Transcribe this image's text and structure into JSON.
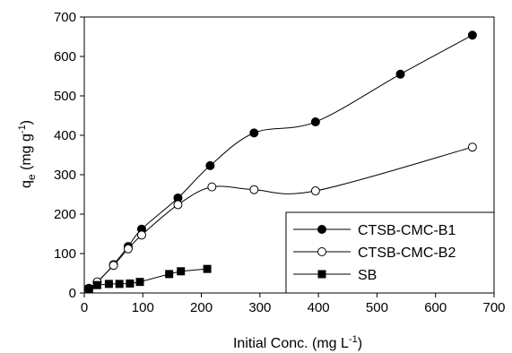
{
  "chart_data": {
    "type": "scatter",
    "title": "",
    "xlabel": {
      "main": "Initial Conc. (mg L",
      "sup": "-1",
      "end": ")"
    },
    "ylabel": {
      "main": "q",
      "sub": "e",
      "mid": " (mg g",
      "sup": "-1",
      "end": ")"
    },
    "xlim": [
      0,
      700
    ],
    "ylim": [
      0,
      700
    ],
    "xticks": [
      0,
      100,
      200,
      300,
      400,
      500,
      600,
      700
    ],
    "yticks": [
      0,
      100,
      200,
      300,
      400,
      500,
      600,
      700
    ],
    "grid": false,
    "legend_position": "bottom-right",
    "series": [
      {
        "name": "CTSB-CMC-B1",
        "marker": "filled-circle",
        "color": "#000000",
        "smooth": true,
        "x": [
          8,
          22,
          50,
          75,
          98,
          160,
          215,
          290,
          395,
          540,
          663
        ],
        "y": [
          12,
          27,
          72,
          118,
          162,
          241,
          323,
          406,
          434,
          555,
          654
        ]
      },
      {
        "name": "CTSB-CMC-B2",
        "marker": "open-circle",
        "color": "#000000",
        "smooth": true,
        "x": [
          8,
          22,
          50,
          75,
          98,
          160,
          218,
          290,
          395,
          663
        ],
        "y": [
          10,
          28,
          70,
          112,
          147,
          224,
          269,
          262,
          259,
          370
        ]
      },
      {
        "name": "SB",
        "marker": "filled-square",
        "color": "#000000",
        "smooth": false,
        "x": [
          8,
          22,
          42,
          60,
          78,
          95,
          145,
          165,
          210
        ],
        "y": [
          10,
          20,
          23,
          23,
          24,
          28,
          48,
          55,
          61
        ]
      }
    ]
  }
}
